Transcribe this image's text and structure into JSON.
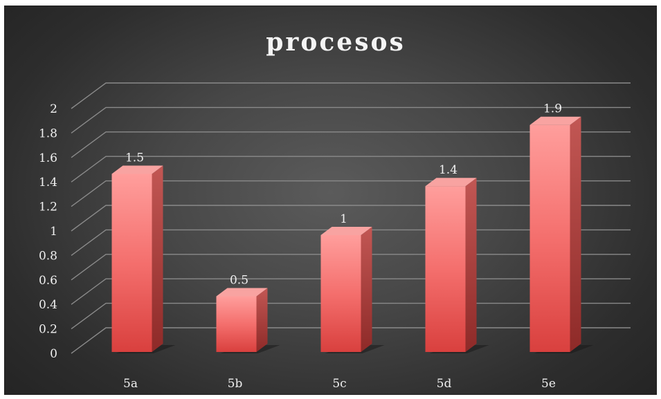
{
  "chart_data": {
    "type": "bar",
    "title": "procesos",
    "categories": [
      "5a",
      "5b",
      "5c",
      "5d",
      "5e"
    ],
    "values": [
      1.5,
      0.5,
      1,
      1.4,
      1.9
    ],
    "data_labels": [
      "1.5",
      "0.5",
      "1",
      "1.4",
      "1.9"
    ],
    "y_ticks": [
      "0",
      "0.2",
      "0.4",
      "0.6",
      "0.8",
      "1",
      "1.2",
      "1.4",
      "1.6",
      "1.8",
      "2"
    ],
    "ylim": [
      0,
      2
    ],
    "xlabel": "",
    "ylabel": "",
    "grid": true,
    "legend": "none",
    "style": "3d-column",
    "colors": {
      "background": "#3d3d3d",
      "bar_front": "#f0706f",
      "bar_top": "#f8a3a1",
      "bar_side": "#b83c3a",
      "grid": "#8a8a8a",
      "text": "#f0f0f0"
    }
  }
}
